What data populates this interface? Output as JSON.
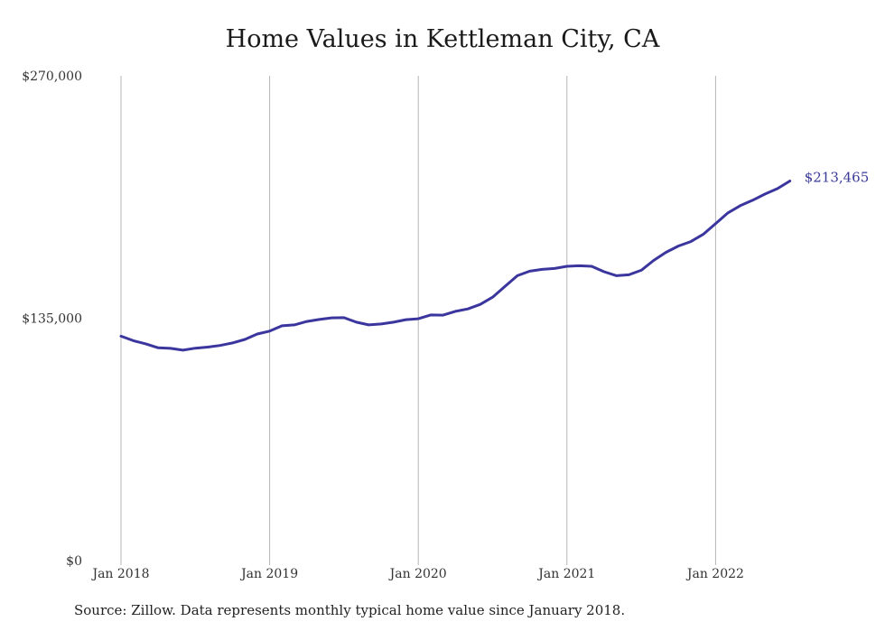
{
  "chart_data": {
    "type": "line",
    "title": "Home Values in Kettleman City, CA",
    "xlabel": "",
    "ylabel": "",
    "ylim": [
      0,
      270000
    ],
    "y_ticks": [
      {
        "value": 0,
        "label": "$0"
      },
      {
        "value": 135000,
        "label": "$135,000"
      },
      {
        "value": 270000,
        "label": "$270,000"
      }
    ],
    "x_ticks": [
      {
        "value": "2018-01",
        "label": "Jan 2018"
      },
      {
        "value": "2019-01",
        "label": "Jan 2019"
      },
      {
        "value": "2020-01",
        "label": "Jan 2020"
      },
      {
        "value": "2021-01",
        "label": "Jan 2021"
      },
      {
        "value": "2022-01",
        "label": "Jan 2022"
      }
    ],
    "grid": "vertical",
    "line_color": "#3b369e",
    "series": [
      {
        "x": [
          "2018-01",
          "2018-02",
          "2018-03",
          "2018-04",
          "2018-05",
          "2018-06",
          "2018-07",
          "2018-08",
          "2018-09",
          "2018-10",
          "2018-11",
          "2018-12",
          "2019-01",
          "2019-02",
          "2019-03",
          "2019-04",
          "2019-05",
          "2019-06",
          "2019-07",
          "2019-08",
          "2019-09",
          "2019-10",
          "2019-11",
          "2019-12",
          "2020-01",
          "2020-02",
          "2020-03",
          "2020-04",
          "2020-05",
          "2020-06",
          "2020-07",
          "2020-08",
          "2020-09",
          "2020-10",
          "2020-11",
          "2020-12",
          "2021-01",
          "2021-02",
          "2021-03",
          "2021-04",
          "2021-05",
          "2021-06",
          "2021-07",
          "2021-08",
          "2021-09",
          "2021-10",
          "2021-11",
          "2021-12",
          "2022-01",
          "2022-02",
          "2022-03",
          "2022-04",
          "2022-05",
          "2022-06",
          "2022-07"
        ],
        "values": [
          125000,
          122500,
          120700,
          118500,
          118200,
          117200,
          118300,
          118900,
          119800,
          121200,
          123200,
          126200,
          127800,
          130800,
          131300,
          133200,
          134300,
          135200,
          135300,
          132800,
          131300,
          131800,
          132800,
          134200,
          134700,
          136800,
          136700,
          138800,
          140200,
          142700,
          146700,
          152700,
          158700,
          161200,
          162200,
          162700,
          163900,
          164200,
          163900,
          160900,
          158700,
          159200,
          161700,
          167200,
          171700,
          175200,
          177700,
          181700,
          187700,
          193700,
          197700,
          200700,
          204200,
          207200,
          211400
        ]
      }
    ],
    "annotations": [
      {
        "x": "2022-07",
        "y": 213465,
        "label": "$213,465"
      }
    ],
    "source": "Source: Zillow. Data represents monthly typical home value since January 2018."
  }
}
